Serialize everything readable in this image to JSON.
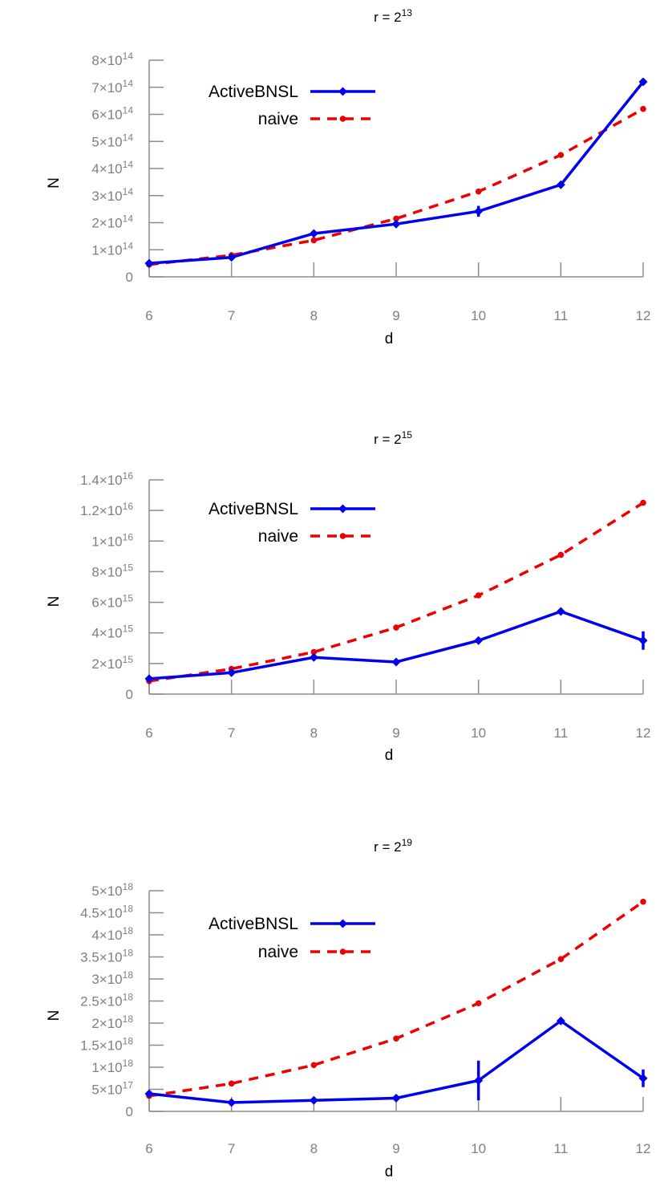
{
  "chart_data": [
    {
      "type": "line",
      "title_base": "r = 2",
      "title_exp": "13",
      "xlabel": "d",
      "ylabel": "N",
      "x": [
        6,
        7,
        8,
        9,
        10,
        11,
        12
      ],
      "xlim": [
        6,
        12
      ],
      "ylim": [
        0,
        800000000000000.0
      ],
      "legend_placement": "top-left",
      "y_ticks": [
        {
          "value": 0,
          "mant": "0",
          "exp": ""
        },
        {
          "value": 100000000000000.0,
          "mant": "1×10",
          "exp": "14"
        },
        {
          "value": 200000000000000.0,
          "mant": "2×10",
          "exp": "14"
        },
        {
          "value": 300000000000000.0,
          "mant": "3×10",
          "exp": "14"
        },
        {
          "value": 400000000000000.0,
          "mant": "4×10",
          "exp": "14"
        },
        {
          "value": 500000000000000.0,
          "mant": "5×10",
          "exp": "14"
        },
        {
          "value": 600000000000000.0,
          "mant": "6×10",
          "exp": "14"
        },
        {
          "value": 700000000000000.0,
          "mant": "7×10",
          "exp": "14"
        },
        {
          "value": 800000000000000.0,
          "mant": "8×10",
          "exp": "14"
        }
      ],
      "series": [
        {
          "name": "ActiveBNSL",
          "color": "#0000ee",
          "style": "solid",
          "marker": "diamond",
          "values": [
            50000000000000.0,
            72000000000000.0,
            160000000000000.0,
            195000000000000.0,
            242000000000000.0,
            340000000000000.0,
            720000000000000.0
          ],
          "errors": [
            0,
            0,
            0,
            0,
            20000000000000.0,
            0,
            0
          ]
        },
        {
          "name": "naive",
          "color": "#ee0000",
          "style": "dashed",
          "marker": "circle",
          "values": [
            45000000000000.0,
            80000000000000.0,
            135000000000000.0,
            215000000000000.0,
            315000000000000.0,
            450000000000000.0,
            620000000000000.0
          ]
        }
      ]
    },
    {
      "type": "line",
      "title_base": "r = 2",
      "title_exp": "15",
      "xlabel": "d",
      "ylabel": "N",
      "x": [
        6,
        7,
        8,
        9,
        10,
        11,
        12
      ],
      "xlim": [
        6,
        12
      ],
      "ylim": [
        0,
        1.4e+16
      ],
      "legend_placement": "top-left",
      "y_ticks": [
        {
          "value": 0,
          "mant": "0",
          "exp": ""
        },
        {
          "value": 2000000000000000.0,
          "mant": "2×10",
          "exp": "15"
        },
        {
          "value": 4000000000000000.0,
          "mant": "4×10",
          "exp": "15"
        },
        {
          "value": 6000000000000000.0,
          "mant": "6×10",
          "exp": "15"
        },
        {
          "value": 8000000000000000.0,
          "mant": "8×10",
          "exp": "15"
        },
        {
          "value": 1e+16,
          "mant": "1×10",
          "exp": "16"
        },
        {
          "value": 1.2e+16,
          "mant": "1.2×10",
          "exp": "16"
        },
        {
          "value": 1.4e+16,
          "mant": "1.4×10",
          "exp": "16"
        }
      ],
      "series": [
        {
          "name": "ActiveBNSL",
          "color": "#0000ee",
          "style": "solid",
          "marker": "diamond",
          "values": [
            1000000000000000.0,
            1400000000000000.0,
            2400000000000000.0,
            2100000000000000.0,
            3500000000000000.0,
            5400000000000000.0,
            3500000000000000.0
          ],
          "errors": [
            0,
            0,
            0,
            0,
            0,
            0,
            600000000000000.0
          ]
        },
        {
          "name": "naive",
          "color": "#ee0000",
          "style": "dashed",
          "marker": "circle",
          "values": [
            850000000000000.0,
            1650000000000000.0,
            2750000000000000.0,
            4350000000000000.0,
            6450000000000000.0,
            9100000000000000.0,
            1.25e+16
          ]
        }
      ]
    },
    {
      "type": "line",
      "title_base": "r = 2",
      "title_exp": "19",
      "xlabel": "d",
      "ylabel": "N",
      "x": [
        6,
        7,
        8,
        9,
        10,
        11,
        12
      ],
      "xlim": [
        6,
        12
      ],
      "ylim": [
        0,
        5e+18
      ],
      "legend_placement": "top-left",
      "y_ticks": [
        {
          "value": 0,
          "mant": "0",
          "exp": ""
        },
        {
          "value": 5e+17,
          "mant": "5×10",
          "exp": "17"
        },
        {
          "value": 1e+18,
          "mant": "1×10",
          "exp": "18"
        },
        {
          "value": 1.5e+18,
          "mant": "1.5×10",
          "exp": "18"
        },
        {
          "value": 2e+18,
          "mant": "2×10",
          "exp": "18"
        },
        {
          "value": 2.5e+18,
          "mant": "2.5×10",
          "exp": "18"
        },
        {
          "value": 3e+18,
          "mant": "3×10",
          "exp": "18"
        },
        {
          "value": 3.5e+18,
          "mant": "3.5×10",
          "exp": "18"
        },
        {
          "value": 4e+18,
          "mant": "4×10",
          "exp": "18"
        },
        {
          "value": 4.5e+18,
          "mant": "4.5×10",
          "exp": "18"
        },
        {
          "value": 5e+18,
          "mant": "5×10",
          "exp": "18"
        }
      ],
      "series": [
        {
          "name": "ActiveBNSL",
          "color": "#0000ee",
          "style": "solid",
          "marker": "diamond",
          "values": [
            4e+17,
            2e+17,
            2.5e+17,
            3e+17,
            7e+17,
            2.05e+18,
            7.5e+17
          ],
          "errors": [
            0,
            0,
            0,
            0,
            4.5e+17,
            0,
            2e+17
          ]
        },
        {
          "name": "naive",
          "color": "#ee0000",
          "style": "dashed",
          "marker": "circle",
          "values": [
            3.5e+17,
            6.3e+17,
            1.05e+18,
            1.65e+18,
            2.45e+18,
            3.45e+18,
            4.75e+18
          ]
        }
      ]
    }
  ]
}
